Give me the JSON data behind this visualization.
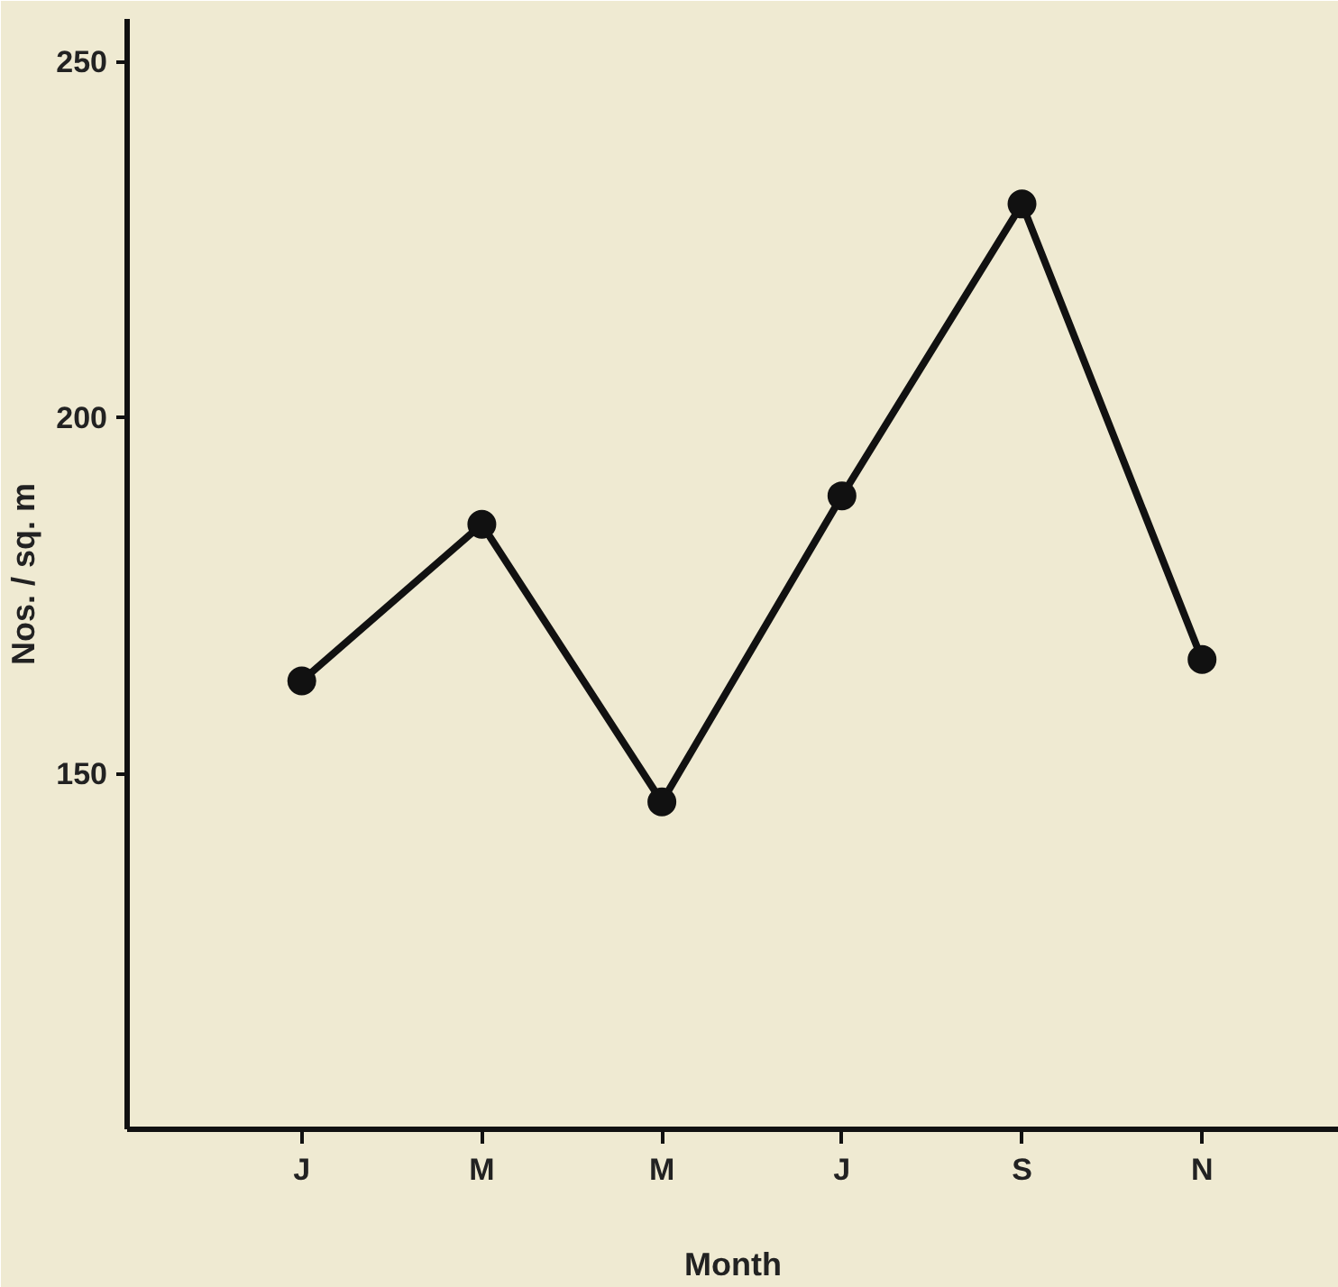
{
  "chart_data": {
    "type": "line",
    "xlabel": "Month",
    "ylabel": "Nos. / sq. m",
    "categories": [
      "J",
      "M",
      "M",
      "J",
      "S",
      "N"
    ],
    "series": [
      {
        "color": "#111111",
        "values": [
          163,
          185,
          146,
          189,
          230,
          166
        ]
      }
    ],
    "ylim": [
      100,
      256
    ],
    "yticks": [
      150,
      200,
      250
    ],
    "grid": false,
    "marker": "circle",
    "line_style": "solid"
  }
}
